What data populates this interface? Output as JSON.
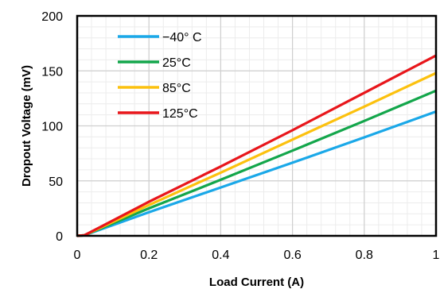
{
  "chart_data": {
    "type": "line",
    "title": "",
    "xlabel": "Load Current (A)",
    "ylabel": "Dropout Voltage (mV)",
    "xlim": [
      0,
      1
    ],
    "ylim": [
      0,
      200
    ],
    "xticks": [
      0,
      0.2,
      0.4,
      0.6,
      0.8,
      1
    ],
    "xtick_labels": [
      "0",
      "0.2",
      "0.4",
      "0.6",
      "0.8",
      "1"
    ],
    "yticks": [
      0,
      50,
      100,
      150,
      200
    ],
    "ytick_labels": [
      "0",
      "50",
      "100",
      "150",
      "200"
    ],
    "grid": true,
    "minor_grid": true,
    "legend_position": "top-left",
    "x": [
      0,
      0.02,
      0.2,
      0.4,
      0.6,
      0.8,
      1
    ],
    "series": [
      {
        "name": "−40° C",
        "color": "#1aa8e8",
        "values": [
          0,
          0.5,
          21.5,
          44,
          66.5,
          89.5,
          113
        ]
      },
      {
        "name": "25°C",
        "color": "#13a64b",
        "values": [
          0,
          0.5,
          25,
          51,
          77.5,
          104.5,
          132
        ]
      },
      {
        "name": "85°C",
        "color": "#fcc10e",
        "values": [
          0,
          0.5,
          28,
          57.5,
          87.5,
          117.5,
          148
        ]
      },
      {
        "name": "125°C",
        "color": "#e8161b",
        "values": [
          0,
          0.5,
          31,
          63,
          96,
          130,
          164
        ]
      }
    ]
  }
}
